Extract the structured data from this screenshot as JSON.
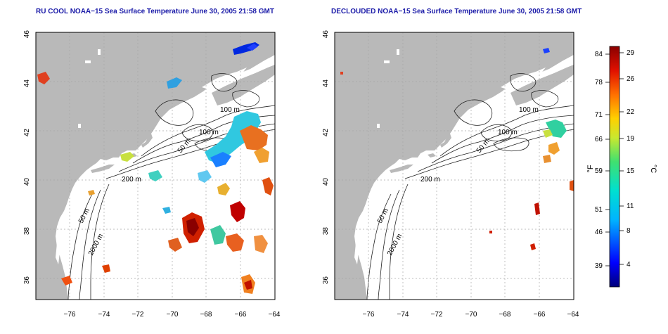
{
  "titles": {
    "left": "RU COOL NOAA−15 Sea Surface Temperature June 30, 2005 21:58 GMT",
    "right": "DECLOUDED NOAA−15 Sea Surface Temperature June 30, 2005 21:58 GMT"
  },
  "axes": {
    "lat_ticks": [
      "46",
      "44",
      "42",
      "40",
      "38",
      "36"
    ],
    "lon_ticks": [
      "−76",
      "−74",
      "−72",
      "−70",
      "−68",
      "−66",
      "−64"
    ]
  },
  "contour_labels": {
    "m100a": "100 m",
    "m100b": "100 m",
    "m50": "50 m",
    "m200": "200 m",
    "m50s": "50 m",
    "m2000": "2000 m"
  },
  "colorbar": {
    "f_ticks": [
      "84",
      "78",
      "71",
      "66",
      "59",
      "51",
      "46",
      "39"
    ],
    "c_ticks": [
      "29",
      "26",
      "22",
      "19",
      "15",
      "11",
      "8",
      "4"
    ],
    "f_unit": "°F",
    "c_unit": "°C"
  },
  "colors": {
    "land": "#b9b9b9",
    "grid": "#a8a8a8",
    "title": "#1a1aa8"
  }
}
